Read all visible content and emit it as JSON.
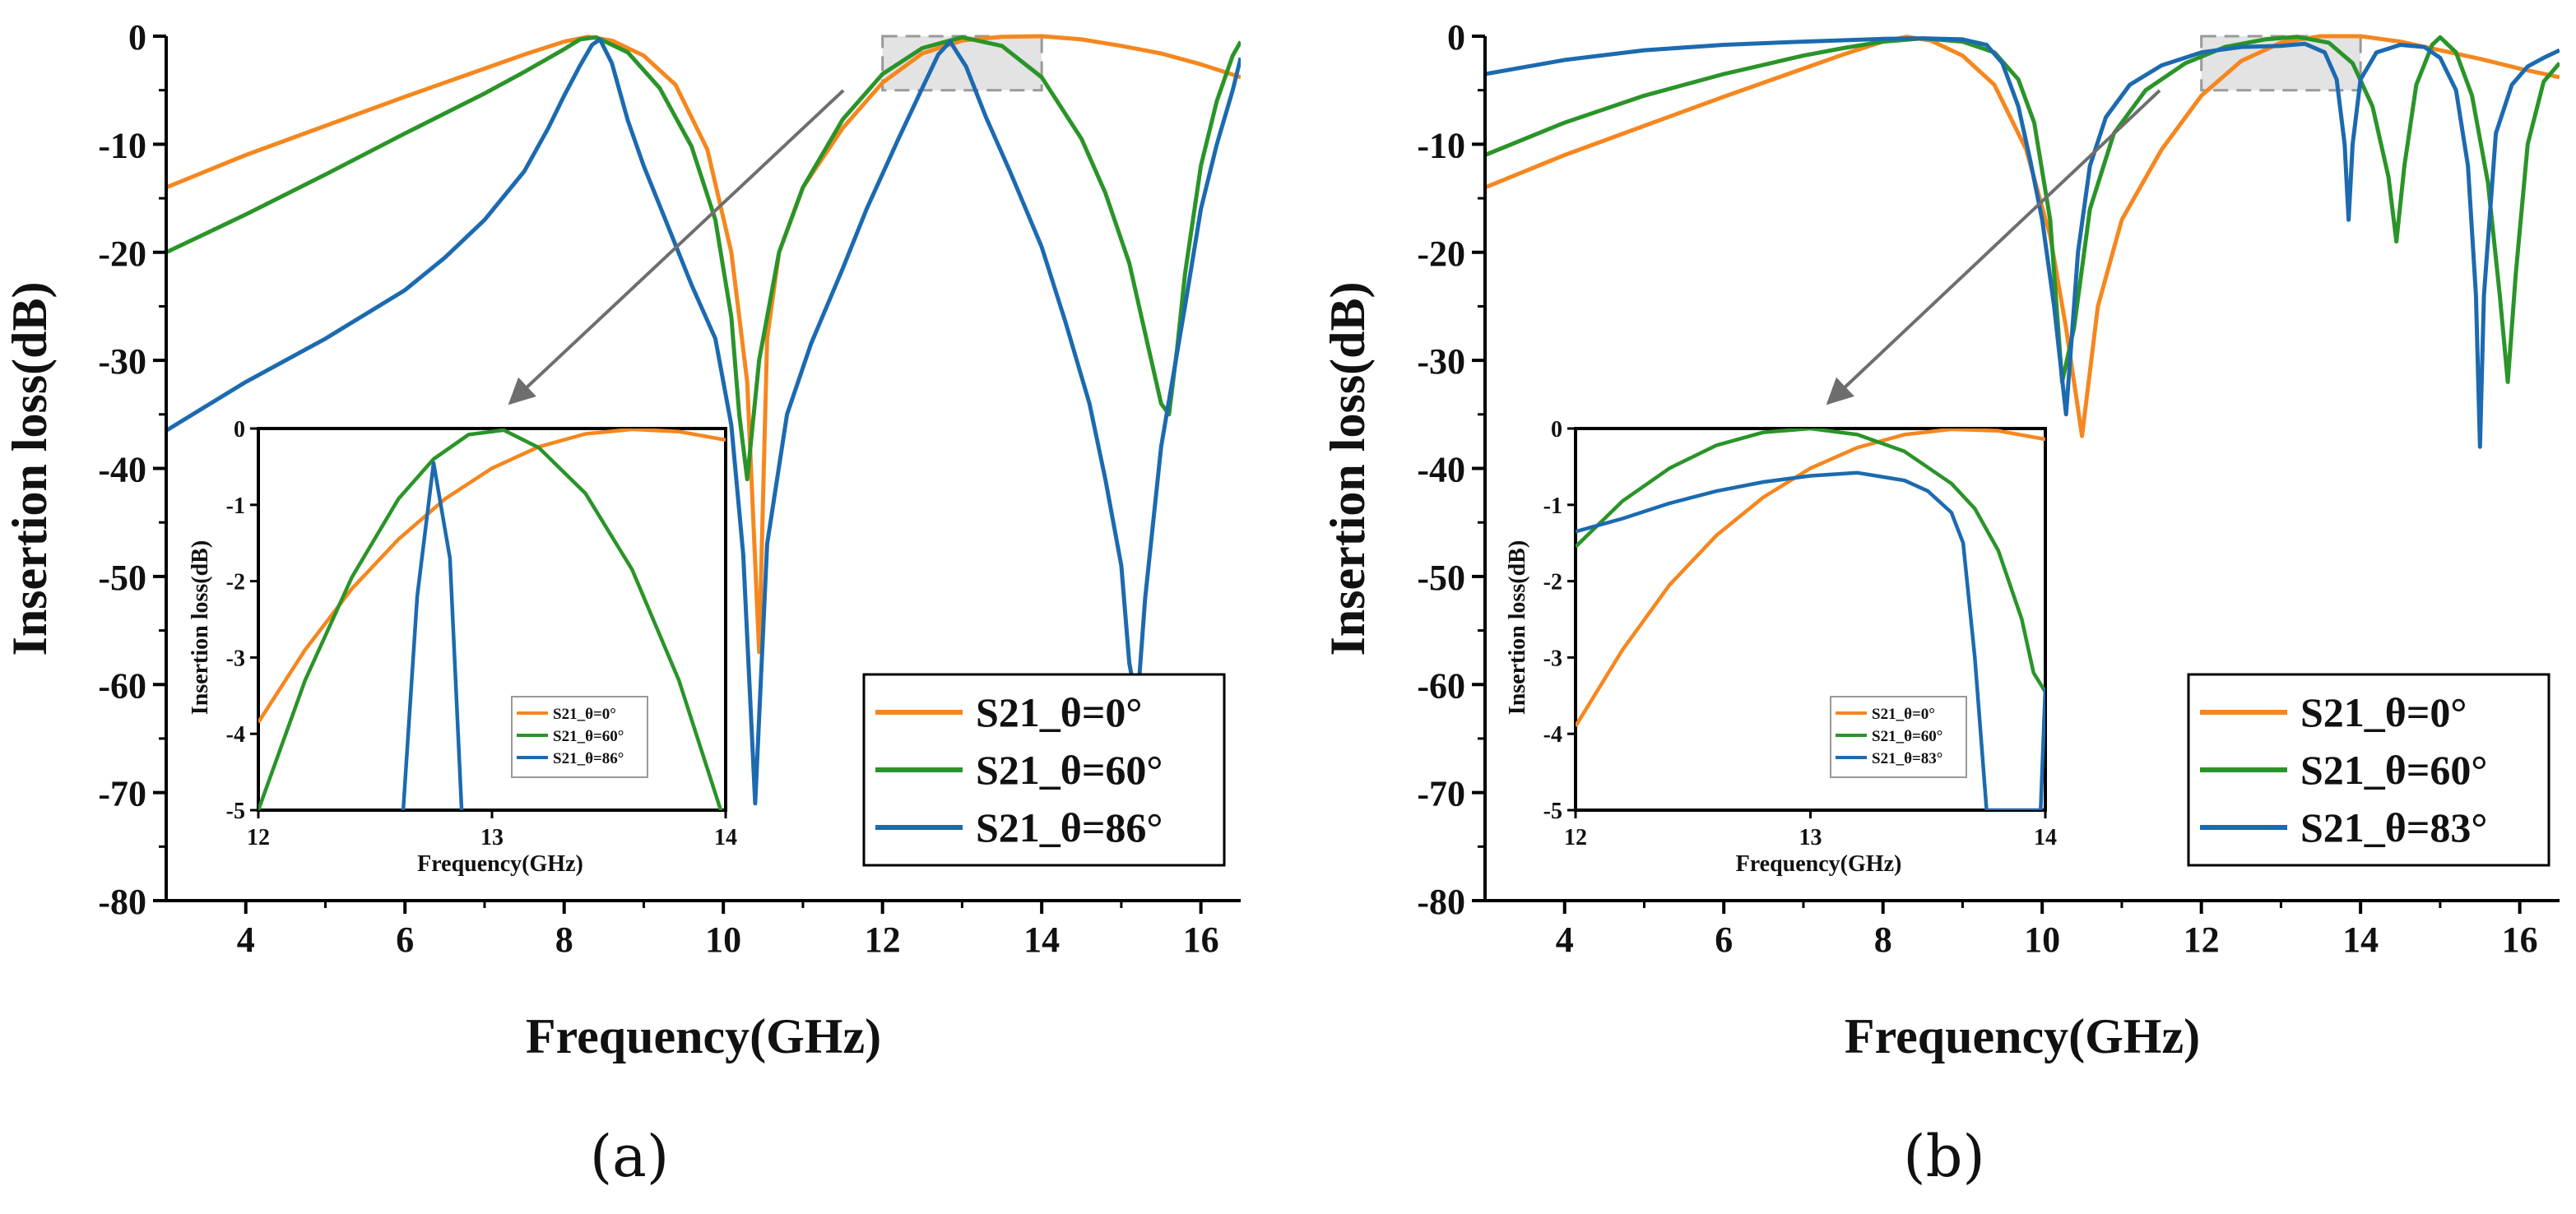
{
  "panel_labels": [
    "(a)",
    "(b)"
  ],
  "chart_data": [
    {
      "type": "line",
      "xlabel": "Frequency(GHz)",
      "ylabel": "Insertion loss(dB)",
      "xlim": [
        3,
        16.5
      ],
      "ylim": [
        -80,
        0
      ],
      "xticks": [
        4,
        6,
        8,
        10,
        12,
        14,
        16
      ],
      "yticks": [
        0,
        -10,
        -20,
        -30,
        -40,
        -50,
        -60,
        -70,
        -80
      ],
      "legend_position": "bottom-right",
      "series": [
        {
          "name": "S21_θ=0°",
          "color": "#f5871f",
          "x": [
            3,
            4,
            5,
            6,
            7,
            7.5,
            8,
            8.3,
            8.6,
            9,
            9.4,
            9.8,
            10.1,
            10.3,
            10.45,
            10.55,
            10.7,
            11,
            11.5,
            12,
            12.5,
            13,
            13.5,
            14,
            14.5,
            15,
            15.5,
            16,
            16.5
          ],
          "y": [
            -14,
            -11,
            -8.3,
            -5.6,
            -3,
            -1.7,
            -0.5,
            -0.05,
            -0.4,
            -1.8,
            -4.5,
            -10.5,
            -20,
            -32,
            -57,
            -28,
            -20,
            -14,
            -8.5,
            -4.3,
            -1.6,
            -0.4,
            -0.05,
            0,
            -0.3,
            -0.9,
            -1.6,
            -2.6,
            -3.8
          ]
        },
        {
          "name": "S21_θ=60°",
          "color": "#2a9428",
          "x": [
            3,
            4,
            5,
            6,
            7,
            7.5,
            8,
            8.2,
            8.4,
            8.8,
            9.2,
            9.6,
            9.9,
            10.1,
            10.2,
            10.3,
            10.45,
            10.7,
            11,
            11.5,
            12,
            12.5,
            13,
            13.5,
            14,
            14.5,
            14.8,
            15.1,
            15.3,
            15.5,
            15.6,
            15.7,
            15.8,
            16,
            16.2,
            16.4,
            16.5
          ],
          "y": [
            -20,
            -16.5,
            -12.8,
            -9,
            -5.3,
            -3.3,
            -1.2,
            -0.3,
            -0.1,
            -1.5,
            -4.8,
            -10.2,
            -17,
            -26,
            -35,
            -41,
            -30,
            -20,
            -14,
            -7.7,
            -3.5,
            -1.1,
            -0.1,
            -0.9,
            -3.8,
            -9.5,
            -14.5,
            -21,
            -27.5,
            -34,
            -35,
            -29,
            -22,
            -12,
            -6,
            -1.8,
            -0.5
          ]
        },
        {
          "name": "S21_θ=86°",
          "color": "#1c6ab0",
          "x": [
            3,
            4,
            5,
            6,
            6.5,
            7,
            7.5,
            7.8,
            8,
            8.2,
            8.35,
            8.45,
            8.6,
            8.8,
            9,
            9.3,
            9.6,
            9.9,
            10.1,
            10.25,
            10.4,
            10.55,
            10.8,
            11.1,
            11.5,
            11.8,
            12.2,
            12.5,
            12.7,
            12.85,
            13.05,
            13.3,
            13.6,
            14,
            14.3,
            14.6,
            14.8,
            15,
            15.1,
            15.2,
            15.3,
            15.5,
            15.8,
            16,
            16.2,
            16.4,
            16.5
          ],
          "y": [
            -36.5,
            -32,
            -28,
            -23.5,
            -20.5,
            -17,
            -12.5,
            -8.5,
            -5.5,
            -2.7,
            -0.8,
            -0.3,
            -2.5,
            -7.8,
            -12,
            -17.5,
            -23,
            -28,
            -36,
            -48,
            -71,
            -47,
            -35,
            -28.5,
            -21.5,
            -16,
            -9.5,
            -4.8,
            -1.7,
            -0.5,
            -2.8,
            -7.5,
            -12.5,
            -19.5,
            -26.5,
            -34,
            -41,
            -49,
            -58,
            -62,
            -52,
            -38,
            -25,
            -16,
            -10,
            -5,
            -2
          ]
        }
      ],
      "inset": {
        "xlabel": "Frequency(GHz)",
        "ylabel": "Insertion loss(dB)",
        "xlim": [
          12,
          14
        ],
        "ylim": [
          -5,
          0
        ],
        "xticks": [
          12,
          13,
          14
        ],
        "yticks": [
          0,
          -1,
          -2,
          -3,
          -4,
          -5
        ],
        "series": [
          {
            "name": "S21_θ=0°",
            "color": "#f5871f",
            "x": [
              12,
              12.2,
              12.4,
              12.6,
              12.8,
              13,
              13.2,
              13.4,
              13.6,
              13.8,
              14
            ],
            "y": [
              -3.85,
              -2.9,
              -2.1,
              -1.45,
              -0.92,
              -0.52,
              -0.24,
              -0.07,
              -0.01,
              -0.04,
              -0.15
            ]
          },
          {
            "name": "S21_θ=60°",
            "color": "#2a9428",
            "x": [
              12,
              12.2,
              12.4,
              12.6,
              12.75,
              12.9,
              13.05,
              13.2,
              13.4,
              13.6,
              13.8,
              14
            ],
            "y": [
              -5,
              -3.3,
              -1.95,
              -0.92,
              -0.4,
              -0.08,
              -0.02,
              -0.25,
              -0.85,
              -1.85,
              -3.3,
              -5.2
            ]
          },
          {
            "name": "S21_θ=86°",
            "color": "#1c6ab0",
            "x": [
              12.62,
              12.68,
              12.75,
              12.82,
              12.87
            ],
            "y": [
              -5,
              -2.2,
              -0.45,
              -1.7,
              -5
            ]
          }
        ]
      }
    },
    {
      "type": "line",
      "xlabel": "Frequency(GHz)",
      "ylabel": "Insertion loss(dB)",
      "xlim": [
        3,
        16.5
      ],
      "ylim": [
        -80,
        0
      ],
      "xticks": [
        4,
        6,
        8,
        10,
        12,
        14,
        16
      ],
      "yticks": [
        0,
        -10,
        -20,
        -30,
        -40,
        -50,
        -60,
        -70,
        -80
      ],
      "legend_position": "bottom-right",
      "series": [
        {
          "name": "S21_θ=0°",
          "color": "#f5871f",
          "x": [
            3,
            4,
            5,
            6,
            7,
            7.5,
            8,
            8.3,
            8.6,
            9,
            9.4,
            9.8,
            10.1,
            10.3,
            10.5,
            10.7,
            11,
            11.5,
            12,
            12.5,
            13,
            13.5,
            14,
            14.5,
            15,
            15.5,
            16,
            16.5
          ],
          "y": [
            -14,
            -11,
            -8.3,
            -5.6,
            -3,
            -1.7,
            -0.5,
            -0.05,
            -0.4,
            -1.8,
            -4.5,
            -10.5,
            -18.5,
            -27,
            -37,
            -25,
            -17,
            -10.5,
            -5.5,
            -2.3,
            -0.6,
            0,
            0,
            -0.5,
            -1.3,
            -2.1,
            -3,
            -3.8
          ]
        },
        {
          "name": "S21_θ=60°",
          "color": "#2a9428",
          "x": [
            3,
            4,
            5,
            6,
            7,
            7.5,
            8,
            8.5,
            9,
            9.4,
            9.7,
            9.9,
            10.1,
            10.25,
            10.4,
            10.6,
            10.9,
            11.3,
            11.8,
            12.3,
            12.8,
            13.2,
            13.6,
            13.9,
            14.15,
            14.35,
            14.45,
            14.55,
            14.7,
            14.9,
            15,
            15.2,
            15.4,
            15.6,
            15.75,
            15.85,
            15.95,
            16.1,
            16.3,
            16.5
          ],
          "y": [
            -11,
            -8,
            -5.5,
            -3.5,
            -1.8,
            -1.1,
            -0.5,
            -0.2,
            -0.5,
            -1.5,
            -4,
            -8,
            -17,
            -32,
            -27,
            -16,
            -9,
            -5,
            -2.5,
            -1,
            -0.3,
            -0.05,
            -0.6,
            -2.5,
            -6.5,
            -13,
            -19,
            -12,
            -4.5,
            -0.8,
            -0.1,
            -1.5,
            -5.5,
            -13.5,
            -24,
            -32,
            -22,
            -10,
            -4.2,
            -2.5
          ]
        },
        {
          "name": "S21_θ=83°",
          "color": "#1c6ab0",
          "x": [
            3,
            4,
            5,
            6,
            7,
            8,
            8.5,
            9,
            9.3,
            9.5,
            9.7,
            9.85,
            10,
            10.15,
            10.3,
            10.45,
            10.6,
            10.8,
            11.1,
            11.5,
            12,
            12.5,
            13,
            13.3,
            13.55,
            13.7,
            13.8,
            13.85,
            13.9,
            14,
            14.2,
            14.5,
            14.8,
            15,
            15.2,
            15.35,
            15.45,
            15.5,
            15.55,
            15.7,
            15.9,
            16.1,
            16.3,
            16.5
          ],
          "y": [
            -3.5,
            -2.2,
            -1.3,
            -0.8,
            -0.5,
            -0.25,
            -0.2,
            -0.3,
            -0.8,
            -2.5,
            -6.5,
            -11.5,
            -17,
            -25,
            -35,
            -20,
            -12,
            -7.5,
            -4.5,
            -2.7,
            -1.5,
            -1,
            -0.9,
            -0.7,
            -1.5,
            -4,
            -10,
            -17,
            -10,
            -4,
            -1.5,
            -0.8,
            -1,
            -2,
            -5,
            -12,
            -24,
            -38,
            -24,
            -9,
            -4.5,
            -2.8,
            -2,
            -1.3
          ]
        }
      ],
      "inset": {
        "xlabel": "Frequency(GHz)",
        "ylabel": "Insertion loss(dB)",
        "xlim": [
          12,
          14
        ],
        "ylim": [
          -5,
          0
        ],
        "xticks": [
          12,
          13,
          14
        ],
        "yticks": [
          0,
          -1,
          -2,
          -3,
          -4,
          -5
        ],
        "series": [
          {
            "name": "S21_θ=0°",
            "color": "#f5871f",
            "x": [
              12,
              12.2,
              12.4,
              12.6,
              12.8,
              13,
              13.2,
              13.4,
              13.6,
              13.8,
              14
            ],
            "y": [
              -3.9,
              -2.9,
              -2.05,
              -1.4,
              -0.9,
              -0.52,
              -0.25,
              -0.08,
              -0.01,
              -0.03,
              -0.14
            ]
          },
          {
            "name": "S21_θ=60°",
            "color": "#2a9428",
            "x": [
              12,
              12.2,
              12.4,
              12.6,
              12.8,
              13,
              13.2,
              13.4,
              13.6,
              13.7,
              13.8,
              13.9,
              13.95,
              14
            ],
            "y": [
              -1.55,
              -0.95,
              -0.52,
              -0.22,
              -0.05,
              0,
              -0.08,
              -0.3,
              -0.72,
              -1.05,
              -1.6,
              -2.5,
              -3.2,
              -3.45
            ]
          },
          {
            "name": "S21_θ=83°",
            "color": "#1c6ab0",
            "x": [
              12,
              12.2,
              12.4,
              12.6,
              12.8,
              13,
              13.2,
              13.4,
              13.5,
              13.6,
              13.65,
              13.7,
              13.73,
              13.75,
              13.8,
              13.98,
              14
            ],
            "y": [
              -1.35,
              -1.18,
              -0.98,
              -0.82,
              -0.7,
              -0.62,
              -0.58,
              -0.68,
              -0.82,
              -1.1,
              -1.5,
              -3,
              -4.2,
              -5,
              -5,
              -5,
              -3.4
            ]
          }
        ]
      }
    }
  ]
}
